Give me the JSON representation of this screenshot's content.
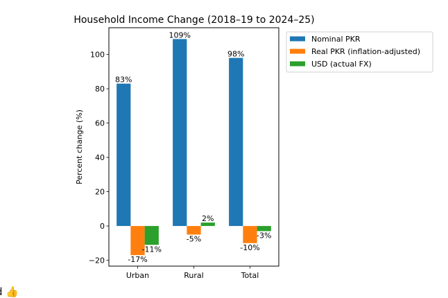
{
  "chart_data": {
    "type": "bar",
    "title": "Household Income Change (2018–19 to 2024–25)",
    "xlabel": "",
    "ylabel": "Percent change (%)",
    "categories": [
      "Urban",
      "Rural",
      "Total"
    ],
    "series": [
      {
        "name": "Nominal PKR",
        "color": "#1f77b4",
        "values": [
          83,
          109,
          98
        ],
        "labels": [
          "83%",
          "109%",
          "98%"
        ]
      },
      {
        "name": "Real PKR (inflation-adjusted)",
        "color": "#ff7f0e",
        "values": [
          -17,
          -5,
          -10
        ],
        "labels": [
          "-17%",
          "-5%",
          "-10%"
        ]
      },
      {
        "name": "USD (actual FX)",
        "color": "#2ca02c",
        "values": [
          -11,
          2,
          -3
        ],
        "labels": [
          "-11%",
          "2%",
          "-3%"
        ]
      }
    ],
    "ylim": [
      -23.4,
      115.6
    ],
    "yticks": [
      -20,
      0,
      20,
      40,
      60,
      80,
      100
    ],
    "grid": false,
    "legend_position": "outside-top-right"
  },
  "footer_partial": {
    "text": "d",
    "emoji": "👍"
  }
}
